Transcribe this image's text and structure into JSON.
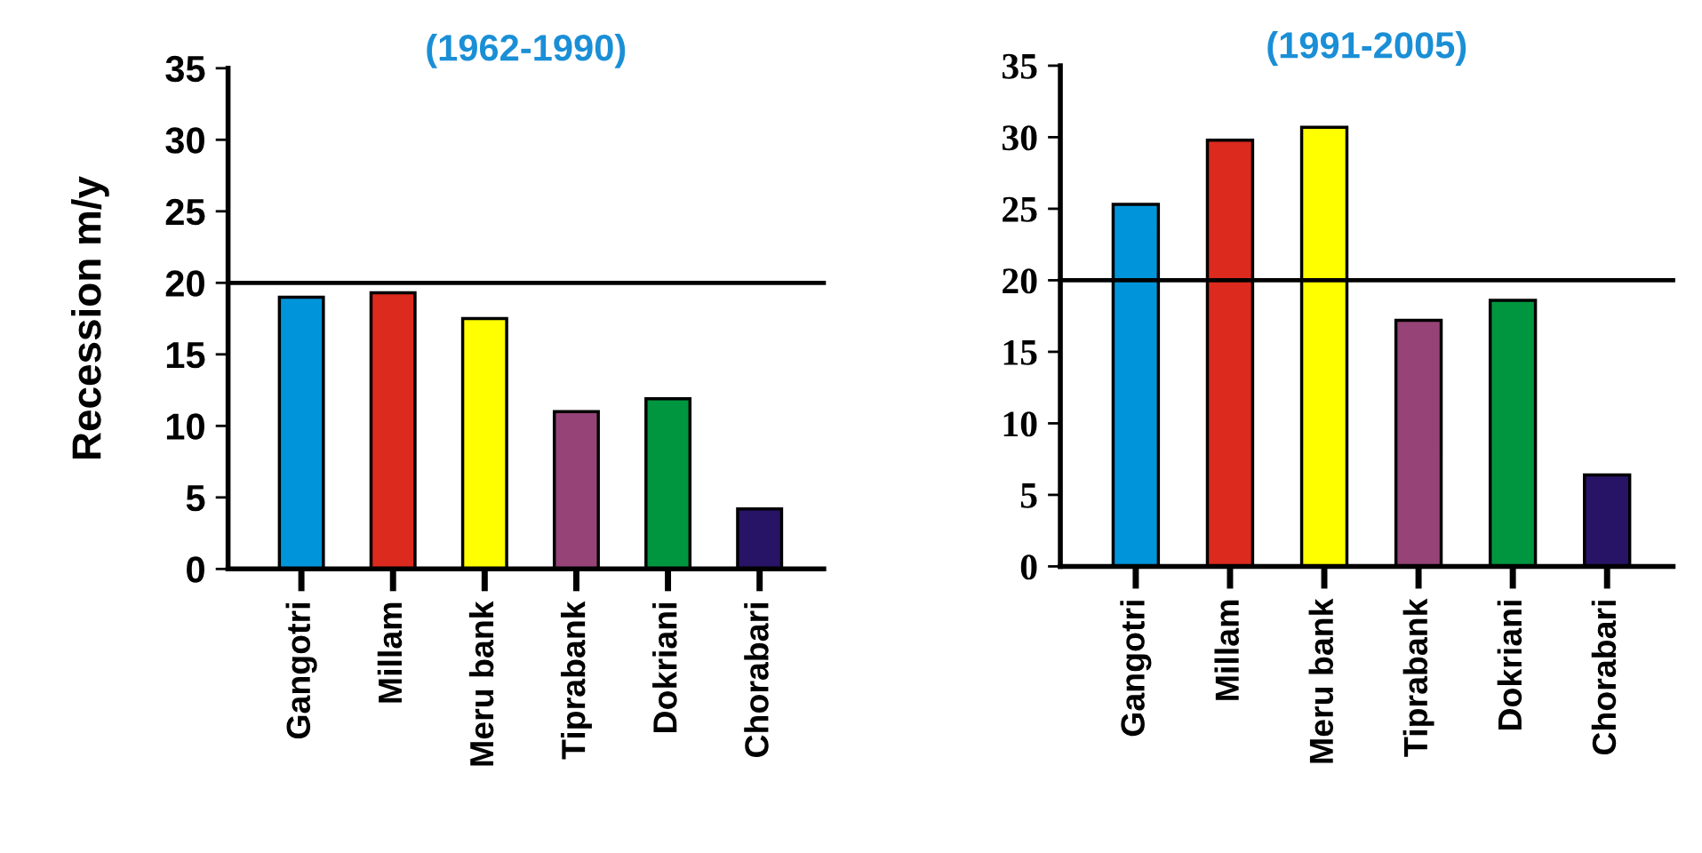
{
  "chart_data": [
    {
      "type": "bar",
      "title": "(1962-1990)",
      "ylabel": "Recession m/y",
      "categories": [
        "Gangotri",
        "Millam",
        "Meru bank",
        "Tiprabank",
        "Dokriani",
        "Chorabari"
      ],
      "colors": [
        "#0095da",
        "#dc2a1e",
        "#ffff00",
        "#964478",
        "#00963f",
        "#281466"
      ],
      "values": [
        19.0,
        19.3,
        17.5,
        11.0,
        11.9,
        4.2
      ],
      "ylim": [
        0,
        35
      ],
      "yticks": [
        0,
        5,
        10,
        15,
        20,
        25,
        30,
        35
      ],
      "grid": false,
      "ref_lines": [
        {
          "axis": "y",
          "value": 20,
          "color": "#000000"
        }
      ]
    },
    {
      "type": "bar",
      "title": "(1991-2005)",
      "categories": [
        "Gangotri",
        "Millam",
        "Meru bank",
        "Tiprabank",
        "Dokriani",
        "Chorabari"
      ],
      "colors": [
        "#0095da",
        "#dc2a1e",
        "#ffff00",
        "#964478",
        "#00963f",
        "#281466"
      ],
      "values": [
        25.3,
        29.8,
        30.7,
        17.2,
        18.6,
        6.4
      ],
      "ylim": [
        0,
        35
      ],
      "yticks": [
        0,
        5,
        10,
        15,
        20,
        25,
        30,
        35
      ],
      "grid": false,
      "ref_lines": [
        {
          "axis": "y",
          "value": 20,
          "color": "#000000"
        }
      ]
    }
  ]
}
